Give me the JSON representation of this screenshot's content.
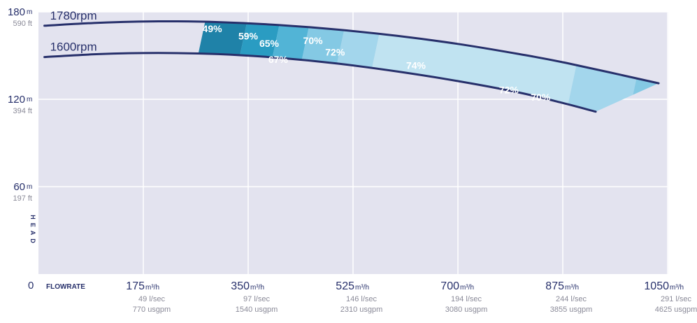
{
  "chart_data": {
    "type": "area",
    "ylabel": "HEAD",
    "xlabel": "FLOWRATE",
    "origin_label": "0",
    "xlim": [
      0,
      1050
    ],
    "ylim": [
      0,
      180
    ],
    "grid": true,
    "y_ticks": [
      {
        "value": 180,
        "main": "180",
        "unit": "m",
        "sub": "590 ft"
      },
      {
        "value": 120,
        "main": "120",
        "unit": "m",
        "sub": "394 ft"
      },
      {
        "value": 60,
        "main": "60",
        "unit": "m",
        "sub": "197 ft"
      }
    ],
    "x_ticks": [
      {
        "value": 175,
        "main": "175",
        "unit": "m³/h",
        "sub1": "49 l/sec",
        "sub2": "770 usgpm"
      },
      {
        "value": 350,
        "main": "350",
        "unit": "m³/h",
        "sub1": "97 l/sec",
        "sub2": "1540 usgpm"
      },
      {
        "value": 525,
        "main": "525",
        "unit": "m³/h",
        "sub1": "146 l/sec",
        "sub2": "2310 usgpm"
      },
      {
        "value": 700,
        "main": "700",
        "unit": "m³/h",
        "sub1": "194 l/sec",
        "sub2": "3080 usgpm"
      },
      {
        "value": 875,
        "main": "875",
        "unit": "m³/h",
        "sub1": "244 l/sec",
        "sub2": "3855 usgpm"
      },
      {
        "value": 1050,
        "main": "1050",
        "unit": "m³/h",
        "sub1": "291 l/sec",
        "sub2": "4625 usgpm"
      }
    ],
    "series": [
      {
        "name": "1780rpm",
        "x": [
          10,
          100,
          200,
          300,
          400,
          500,
          600,
          700,
          800,
          880,
          1035
        ],
        "y": [
          170.5,
          172.5,
          173.5,
          173,
          171,
          167.8,
          163.5,
          158,
          151.2,
          145,
          131
        ]
      },
      {
        "name": "1600rpm",
        "x": [
          10,
          100,
          200,
          300,
          400,
          500,
          600,
          700,
          800,
          870,
          930
        ],
        "y": [
          149,
          151,
          151.8,
          151,
          148.5,
          144.5,
          139,
          132.5,
          124.8,
          118,
          111.5
        ]
      }
    ],
    "efficiency_zones": [
      {
        "label": "49%",
        "color": "#1f82a8",
        "x_from": 235,
        "x_to": 305,
        "label_x": 290,
        "label_y": 166
      },
      {
        "label": "59%",
        "color": "#2a9cc2",
        "x_from": 305,
        "x_to": 360,
        "label_x": 350,
        "label_y": 161
      },
      {
        "label": "65%",
        "color": "#52b4d6",
        "x_from": 360,
        "x_to": 410,
        "label_x": 385,
        "label_y": 156
      },
      {
        "label": "67%",
        "color": "#52b4d6",
        "x_from": 360,
        "x_to": 410,
        "label_x": 400,
        "label_y": 145
      },
      {
        "label": "70%",
        "color": "#84c9e4",
        "x_from": 410,
        "x_to": 470,
        "label_x": 458,
        "label_y": 158
      },
      {
        "label": "72%",
        "color": "#a3d6ec",
        "x_from": 470,
        "x_to": 530,
        "label_x": 495,
        "label_y": 150
      },
      {
        "label": "74%",
        "color": "#c0e3f1",
        "x_from": 530,
        "x_to": 870,
        "label_x": 630,
        "label_y": 141
      },
      {
        "label": "72%",
        "color": "#a3d6ec",
        "x_from": 870,
        "x_to": 975,
        "label_x": 785,
        "label_y": 124
      },
      {
        "label": "70%",
        "color": "#84c9e4",
        "x_from": 975,
        "x_to": 1040,
        "label_x": 838,
        "label_y": 119
      }
    ],
    "colors": {
      "background": "#e3e3ef",
      "grid": "#ffffff",
      "curve": "#27306b",
      "axis_text": "#27306b",
      "sub_text": "#8a8a98",
      "zone_label": "#ffffff"
    }
  }
}
